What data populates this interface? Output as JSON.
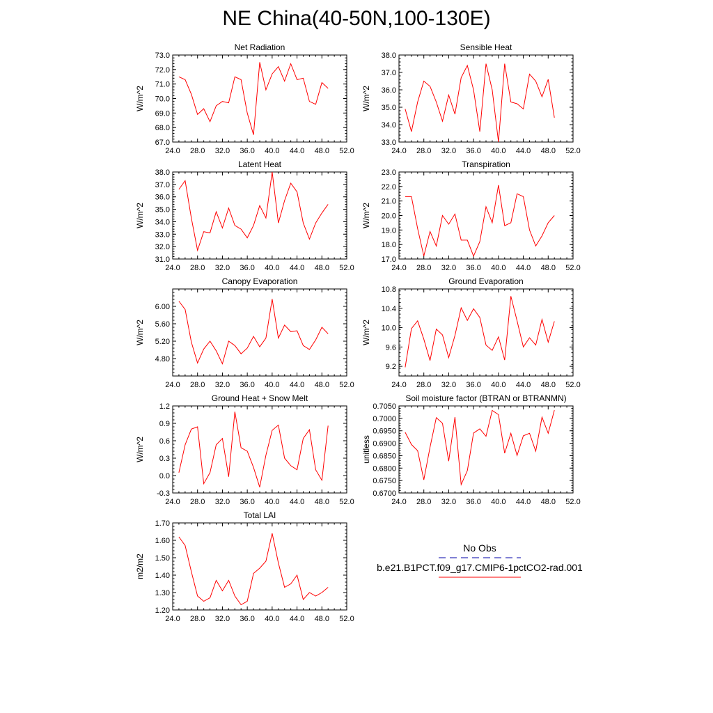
{
  "title": "NE China(40-50N,100-130E)",
  "colors": {
    "series": "#ff0000",
    "obs": "#0000aa",
    "axis": "#000000"
  },
  "legend": {
    "obs_label": "No Obs",
    "model_label": "b.e21.B1PCT.f09_g17.CMIP6-1pctCO2-rad.001"
  },
  "chart_data": [
    {
      "type": "line",
      "title": "Net Radiation",
      "ylabel": "W/m^2",
      "xlim": [
        24,
        52
      ],
      "ylim": [
        67,
        73
      ],
      "xticks": [
        "24.0",
        "28.0",
        "32.0",
        "36.0",
        "40.0",
        "44.0",
        "48.0",
        "52.0"
      ],
      "xtick_values": [
        24,
        28,
        32,
        36,
        40,
        44,
        48,
        52
      ],
      "yticks": [
        "67.0",
        "68.0",
        "69.0",
        "70.0",
        "71.0",
        "72.0",
        "73.0"
      ],
      "ytick_values": [
        67,
        68,
        69,
        70,
        71,
        72,
        73
      ],
      "x": [
        25,
        26,
        27,
        28,
        29,
        30,
        31,
        32,
        33,
        34,
        35,
        36,
        37,
        38,
        39,
        40,
        41,
        42,
        43,
        44,
        45,
        46,
        47,
        48,
        49
      ],
      "series": [
        {
          "values": [
            71.5,
            71.3,
            70.3,
            68.9,
            69.3,
            68.4,
            69.5,
            69.8,
            69.7,
            71.5,
            71.3,
            69.0,
            67.5,
            72.5,
            70.6,
            71.7,
            72.2,
            71.2,
            72.4,
            71.3,
            71.4,
            69.8,
            69.6,
            71.1,
            70.7
          ]
        }
      ]
    },
    {
      "type": "line",
      "title": "Sensible Heat",
      "ylabel": "W/m^2",
      "xlim": [
        24,
        52
      ],
      "ylim": [
        33,
        38
      ],
      "xticks": [
        "24.0",
        "28.0",
        "32.0",
        "36.0",
        "40.0",
        "44.0",
        "48.0",
        "52.0"
      ],
      "xtick_values": [
        24,
        28,
        32,
        36,
        40,
        44,
        48,
        52
      ],
      "yticks": [
        "33.0",
        "34.0",
        "35.0",
        "36.0",
        "37.0",
        "38.0"
      ],
      "ytick_values": [
        33,
        34,
        35,
        36,
        37,
        38
      ],
      "x": [
        25,
        26,
        27,
        28,
        29,
        30,
        31,
        32,
        33,
        34,
        35,
        36,
        37,
        38,
        39,
        40,
        41,
        42,
        43,
        44,
        45,
        46,
        47,
        48,
        49
      ],
      "series": [
        {
          "values": [
            34.9,
            33.6,
            35.3,
            36.5,
            36.2,
            35.3,
            34.2,
            35.7,
            34.6,
            36.7,
            37.4,
            36.0,
            33.6,
            37.5,
            36.0,
            33.0,
            37.5,
            35.3,
            35.2,
            34.9,
            36.9,
            36.5,
            35.6,
            36.6,
            34.4
          ]
        }
      ]
    },
    {
      "type": "line",
      "title": "Latent Heat",
      "ylabel": "W/m^2",
      "xlim": [
        24,
        52
      ],
      "ylim": [
        31,
        38
      ],
      "xticks": [
        "24.0",
        "28.0",
        "32.0",
        "36.0",
        "40.0",
        "44.0",
        "48.0",
        "52.0"
      ],
      "xtick_values": [
        24,
        28,
        32,
        36,
        40,
        44,
        48,
        52
      ],
      "yticks": [
        "31.0",
        "32.0",
        "33.0",
        "34.0",
        "35.0",
        "36.0",
        "37.0",
        "38.0"
      ],
      "ytick_values": [
        31,
        32,
        33,
        34,
        35,
        36,
        37,
        38
      ],
      "x": [
        25,
        26,
        27,
        28,
        29,
        30,
        31,
        32,
        33,
        34,
        35,
        36,
        37,
        38,
        39,
        40,
        41,
        42,
        43,
        44,
        45,
        46,
        47,
        48,
        49
      ],
      "series": [
        {
          "values": [
            36.6,
            37.3,
            34.3,
            31.7,
            33.2,
            33.1,
            34.8,
            33.5,
            35.1,
            33.7,
            33.4,
            32.7,
            33.7,
            35.3,
            34.3,
            38.0,
            33.9,
            35.7,
            37.1,
            36.4,
            33.9,
            32.6,
            33.9,
            34.7,
            35.4
          ]
        }
      ]
    },
    {
      "type": "line",
      "title": "Transpiration",
      "ylabel": "W/m^2",
      "xlim": [
        24,
        52
      ],
      "ylim": [
        17,
        23
      ],
      "xticks": [
        "24.0",
        "28.0",
        "32.0",
        "36.0",
        "40.0",
        "44.0",
        "48.0",
        "52.0"
      ],
      "xtick_values": [
        24,
        28,
        32,
        36,
        40,
        44,
        48,
        52
      ],
      "yticks": [
        "17.0",
        "18.0",
        "19.0",
        "20.0",
        "21.0",
        "22.0",
        "23.0"
      ],
      "ytick_values": [
        17,
        18,
        19,
        20,
        21,
        22,
        23
      ],
      "x": [
        25,
        26,
        27,
        28,
        29,
        30,
        31,
        32,
        33,
        34,
        35,
        36,
        37,
        38,
        39,
        40,
        41,
        42,
        43,
        44,
        45,
        46,
        47,
        48,
        49
      ],
      "series": [
        {
          "values": [
            21.3,
            21.3,
            19.1,
            17.2,
            18.9,
            17.9,
            20.0,
            19.4,
            20.1,
            18.3,
            18.3,
            17.2,
            18.2,
            20.6,
            19.5,
            22.1,
            19.3,
            19.5,
            21.5,
            21.3,
            19.0,
            17.9,
            18.6,
            19.5,
            20.0
          ]
        }
      ]
    },
    {
      "type": "line",
      "title": "Canopy Evaporation",
      "ylabel": "W/m^2",
      "xlim": [
        24,
        52
      ],
      "ylim": [
        4.4,
        6.4
      ],
      "xticks": [
        "24.0",
        "28.0",
        "32.0",
        "36.0",
        "40.0",
        "44.0",
        "48.0",
        "52.0"
      ],
      "xtick_values": [
        24,
        28,
        32,
        36,
        40,
        44,
        48,
        52
      ],
      "yticks": [
        "4.80",
        "5.20",
        "5.60",
        "6.00"
      ],
      "ytick_values": [
        4.8,
        5.2,
        5.6,
        6.0
      ],
      "x": [
        25,
        26,
        27,
        28,
        29,
        30,
        31,
        32,
        33,
        34,
        35,
        36,
        37,
        38,
        39,
        40,
        41,
        42,
        43,
        44,
        45,
        46,
        47,
        48,
        49
      ],
      "series": [
        {
          "values": [
            6.12,
            5.93,
            5.18,
            4.7,
            5.02,
            5.2,
            4.98,
            4.68,
            5.2,
            5.1,
            4.91,
            5.04,
            5.31,
            5.07,
            5.27,
            6.17,
            5.27,
            5.57,
            5.42,
            5.44,
            5.1,
            5.01,
            5.23,
            5.52,
            5.37
          ]
        }
      ]
    },
    {
      "type": "line",
      "title": "Ground Evaporation",
      "ylabel": "W/m^2",
      "xlim": [
        24,
        52
      ],
      "ylim": [
        9.0,
        10.8
      ],
      "xticks": [
        "24.0",
        "28.0",
        "32.0",
        "36.0",
        "40.0",
        "44.0",
        "48.0",
        "52.0"
      ],
      "xtick_values": [
        24,
        28,
        32,
        36,
        40,
        44,
        48,
        52
      ],
      "yticks": [
        "9.2",
        "9.6",
        "10.0",
        "10.4",
        "10.8"
      ],
      "ytick_values": [
        9.2,
        9.6,
        10.0,
        10.4,
        10.8
      ],
      "x": [
        25,
        26,
        27,
        28,
        29,
        30,
        31,
        32,
        33,
        34,
        35,
        36,
        37,
        38,
        39,
        40,
        41,
        42,
        43,
        44,
        45,
        46,
        47,
        48,
        49
      ],
      "series": [
        {
          "values": [
            9.18,
            9.98,
            10.14,
            9.76,
            9.32,
            9.97,
            9.85,
            9.38,
            9.84,
            10.41,
            10.15,
            10.39,
            10.21,
            9.64,
            9.53,
            9.81,
            9.33,
            10.65,
            10.14,
            9.6,
            9.79,
            9.64,
            10.17,
            9.7,
            10.13
          ]
        }
      ]
    },
    {
      "type": "line",
      "title": "Ground Heat + Snow Melt",
      "ylabel": "W/m^2",
      "xlim": [
        24,
        52
      ],
      "ylim": [
        -0.3,
        1.2
      ],
      "xticks": [
        "24.0",
        "28.0",
        "32.0",
        "36.0",
        "40.0",
        "44.0",
        "48.0",
        "52.0"
      ],
      "xtick_values": [
        24,
        28,
        32,
        36,
        40,
        44,
        48,
        52
      ],
      "yticks": [
        "-0.3",
        "0.0",
        "0.3",
        "0.6",
        "0.9",
        "1.2"
      ],
      "ytick_values": [
        -0.3,
        0.0,
        0.3,
        0.6,
        0.9,
        1.2
      ],
      "x": [
        25,
        26,
        27,
        28,
        29,
        30,
        31,
        32,
        33,
        34,
        35,
        36,
        37,
        38,
        39,
        40,
        41,
        42,
        43,
        44,
        45,
        46,
        47,
        48,
        49
      ],
      "series": [
        {
          "values": [
            0.05,
            0.53,
            0.8,
            0.84,
            -0.14,
            0.05,
            0.53,
            0.64,
            -0.02,
            1.1,
            0.48,
            0.42,
            0.14,
            -0.2,
            0.35,
            0.78,
            0.87,
            0.3,
            0.17,
            0.1,
            0.64,
            0.79,
            0.1,
            -0.08,
            0.86
          ]
        }
      ]
    },
    {
      "type": "line",
      "title": "Soil moisture factor (BTRAN or BTRANMN)",
      "ylabel": "unitless",
      "xlim": [
        24,
        52
      ],
      "ylim": [
        0.67,
        0.705
      ],
      "xticks": [
        "24.0",
        "28.0",
        "32.0",
        "36.0",
        "40.0",
        "44.0",
        "48.0",
        "52.0"
      ],
      "xtick_values": [
        24,
        28,
        32,
        36,
        40,
        44,
        48,
        52
      ],
      "yticks": [
        "0.6700",
        "0.6750",
        "0.6800",
        "0.6850",
        "0.6900",
        "0.6950",
        "0.7000",
        "0.7050"
      ],
      "ytick_values": [
        0.67,
        0.675,
        0.68,
        0.685,
        0.69,
        0.695,
        0.7,
        0.705
      ],
      "x": [
        25,
        26,
        27,
        28,
        29,
        30,
        31,
        32,
        33,
        34,
        35,
        36,
        37,
        38,
        39,
        40,
        41,
        42,
        43,
        44,
        45,
        46,
        47,
        48,
        49
      ],
      "series": [
        {
          "values": [
            0.6944,
            0.6895,
            0.687,
            0.6753,
            0.6884,
            0.7003,
            0.698,
            0.6828,
            0.7005,
            0.6734,
            0.679,
            0.6941,
            0.6958,
            0.6928,
            0.7032,
            0.7015,
            0.686,
            0.694,
            0.6851,
            0.693,
            0.694,
            0.6868,
            0.7005,
            0.694,
            0.7033
          ]
        }
      ]
    },
    {
      "type": "line",
      "title": "Total LAI",
      "ylabel": "m2/m2",
      "xlim": [
        24,
        52
      ],
      "ylim": [
        1.2,
        1.7
      ],
      "xticks": [
        "24.0",
        "28.0",
        "32.0",
        "36.0",
        "40.0",
        "44.0",
        "48.0",
        "52.0"
      ],
      "xtick_values": [
        24,
        28,
        32,
        36,
        40,
        44,
        48,
        52
      ],
      "yticks": [
        "1.20",
        "1.30",
        "1.40",
        "1.50",
        "1.60",
        "1.70"
      ],
      "ytick_values": [
        1.2,
        1.3,
        1.4,
        1.5,
        1.6,
        1.7
      ],
      "x": [
        25,
        26,
        27,
        28,
        29,
        30,
        31,
        32,
        33,
        34,
        35,
        36,
        37,
        38,
        39,
        40,
        41,
        42,
        43,
        44,
        45,
        46,
        47,
        48,
        49
      ],
      "series": [
        {
          "values": [
            1.62,
            1.57,
            1.42,
            1.28,
            1.25,
            1.27,
            1.37,
            1.31,
            1.37,
            1.28,
            1.23,
            1.25,
            1.41,
            1.44,
            1.48,
            1.64,
            1.47,
            1.33,
            1.35,
            1.4,
            1.26,
            1.3,
            1.28,
            1.3,
            1.33
          ]
        }
      ]
    }
  ]
}
